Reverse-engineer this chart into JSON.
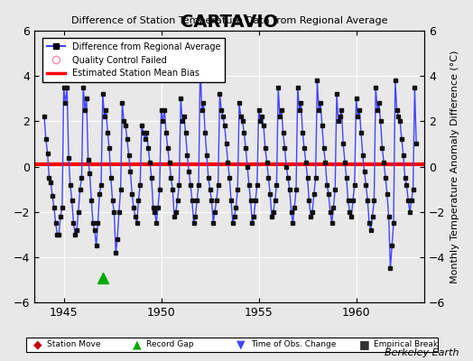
{
  "title": "CARTAVIO",
  "subtitle": "Difference of Station Temperature Data from Regional Average",
  "ylabel": "Monthly Temperature Anomaly Difference (°C)",
  "xlim": [
    1943.5,
    1963.5
  ],
  "ylim": [
    -6,
    6
  ],
  "yticks": [
    -6,
    -4,
    -2,
    0,
    2,
    4,
    6
  ],
  "xticks": [
    1945,
    1950,
    1955,
    1960
  ],
  "bias": 0.1,
  "line_color": "#4444ff",
  "line_width": 1.0,
  "marker_color": "#111111",
  "marker_size": 3.5,
  "bias_color": "#ff0000",
  "bias_linewidth": 3.0,
  "background_color": "#e8e8e8",
  "grid_color": "#ffffff",
  "record_gap_x": 1947.0,
  "record_gap_y": -4.9,
  "berkeley_earth_text": "Berkeley Earth",
  "data": [
    1944.0,
    2.2,
    1944.083,
    1.2,
    1944.167,
    0.6,
    1944.25,
    -0.5,
    1944.333,
    -0.7,
    1944.417,
    -1.3,
    1944.5,
    -1.8,
    1944.583,
    -2.5,
    1944.667,
    -3.0,
    1944.75,
    -3.0,
    1944.833,
    -2.2,
    1944.917,
    -1.8,
    1945.0,
    3.5,
    1945.083,
    2.8,
    1945.167,
    3.5,
    1945.25,
    0.4,
    1945.333,
    -0.8,
    1945.417,
    -1.5,
    1945.5,
    -2.5,
    1945.583,
    -3.0,
    1945.667,
    -2.8,
    1945.75,
    -2.0,
    1945.833,
    -1.0,
    1945.917,
    -0.5,
    1946.0,
    3.5,
    1946.083,
    2.5,
    1946.167,
    3.0,
    1946.25,
    0.3,
    1946.333,
    -0.3,
    1946.417,
    -1.5,
    1946.5,
    -2.5,
    1946.583,
    -2.8,
    1946.667,
    -3.5,
    1946.75,
    -2.5,
    1946.833,
    -1.2,
    1946.917,
    -0.8,
    1947.0,
    3.2,
    1947.083,
    2.2,
    1947.167,
    2.5,
    1947.25,
    1.5,
    1947.333,
    0.8,
    1947.417,
    -0.5,
    1947.5,
    -1.5,
    1947.583,
    -2.0,
    1947.667,
    -3.8,
    1947.75,
    -3.2,
    1947.833,
    -2.0,
    1947.917,
    -1.0,
    1948.0,
    2.8,
    1948.083,
    2.0,
    1948.167,
    1.8,
    1948.25,
    1.2,
    1948.333,
    0.5,
    1948.417,
    -0.2,
    1948.5,
    -1.2,
    1948.583,
    -1.8,
    1948.667,
    -2.2,
    1948.75,
    -2.5,
    1948.833,
    -1.5,
    1948.917,
    -0.8,
    1949.0,
    1.8,
    1949.083,
    1.5,
    1949.167,
    1.2,
    1949.25,
    1.5,
    1949.333,
    0.8,
    1949.417,
    0.2,
    1949.5,
    -0.5,
    1949.583,
    -1.8,
    1949.667,
    -2.0,
    1949.75,
    -2.5,
    1949.833,
    -1.8,
    1949.917,
    -1.0,
    1950.0,
    2.5,
    1950.083,
    2.0,
    1950.167,
    2.5,
    1950.25,
    1.5,
    1950.333,
    0.8,
    1950.417,
    0.2,
    1950.5,
    -0.5,
    1950.583,
    -1.0,
    1950.667,
    -2.2,
    1950.75,
    -2.0,
    1950.833,
    -1.5,
    1950.917,
    -0.8,
    1951.0,
    3.0,
    1951.083,
    2.0,
    1951.167,
    2.2,
    1951.25,
    1.5,
    1951.333,
    0.5,
    1951.417,
    -0.2,
    1951.5,
    -0.8,
    1951.583,
    -1.5,
    1951.667,
    -2.5,
    1951.75,
    -2.2,
    1951.833,
    -1.5,
    1951.917,
    -0.8,
    1952.0,
    4.5,
    1952.083,
    2.5,
    1952.167,
    2.8,
    1952.25,
    1.5,
    1952.333,
    0.5,
    1952.417,
    -0.5,
    1952.5,
    -1.0,
    1952.583,
    -1.5,
    1952.667,
    -2.5,
    1952.75,
    -2.0,
    1952.833,
    -1.5,
    1952.917,
    -0.8,
    1953.0,
    3.2,
    1953.083,
    2.5,
    1953.167,
    2.2,
    1953.25,
    1.8,
    1953.333,
    1.0,
    1953.417,
    0.2,
    1953.5,
    -0.5,
    1953.583,
    -1.5,
    1953.667,
    -2.5,
    1953.75,
    -2.2,
    1953.833,
    -1.8,
    1953.917,
    -1.0,
    1954.0,
    2.8,
    1954.083,
    2.2,
    1954.167,
    2.0,
    1954.25,
    1.5,
    1954.333,
    0.8,
    1954.417,
    0.0,
    1954.5,
    -0.8,
    1954.583,
    -1.5,
    1954.667,
    -2.5,
    1954.75,
    -2.2,
    1954.833,
    -1.5,
    1954.917,
    -0.8,
    1955.0,
    2.5,
    1955.083,
    2.0,
    1955.167,
    2.2,
    1955.25,
    1.8,
    1955.333,
    0.8,
    1955.417,
    0.2,
    1955.5,
    -0.5,
    1955.583,
    -1.2,
    1955.667,
    -2.2,
    1955.75,
    -2.0,
    1955.833,
    -1.5,
    1955.917,
    -0.8,
    1956.0,
    3.5,
    1956.083,
    2.2,
    1956.167,
    2.5,
    1956.25,
    1.5,
    1956.333,
    0.8,
    1956.417,
    0.0,
    1956.5,
    -0.5,
    1956.583,
    -1.0,
    1956.667,
    -2.0,
    1956.75,
    -2.5,
    1956.833,
    -1.8,
    1956.917,
    -1.0,
    1957.0,
    3.5,
    1957.083,
    2.5,
    1957.167,
    2.8,
    1957.25,
    1.5,
    1957.333,
    0.8,
    1957.417,
    0.2,
    1957.5,
    -0.5,
    1957.583,
    -1.5,
    1957.667,
    -2.2,
    1957.75,
    -2.0,
    1957.833,
    -1.2,
    1957.917,
    -0.5,
    1958.0,
    3.8,
    1958.083,
    2.5,
    1958.167,
    2.8,
    1958.25,
    1.8,
    1958.333,
    0.8,
    1958.417,
    0.2,
    1958.5,
    -0.8,
    1958.583,
    -1.2,
    1958.667,
    -2.0,
    1958.75,
    -2.5,
    1958.833,
    -1.8,
    1958.917,
    -1.0,
    1959.0,
    3.2,
    1959.083,
    2.0,
    1959.167,
    2.2,
    1959.25,
    2.5,
    1959.333,
    1.0,
    1959.417,
    0.2,
    1959.5,
    -0.5,
    1959.583,
    -1.5,
    1959.667,
    -2.0,
    1959.75,
    -2.2,
    1959.833,
    -1.5,
    1959.917,
    -0.8,
    1960.0,
    3.0,
    1960.083,
    2.2,
    1960.167,
    2.5,
    1960.25,
    1.5,
    1960.333,
    0.5,
    1960.417,
    -0.2,
    1960.5,
    -0.8,
    1960.583,
    -1.5,
    1960.667,
    -2.5,
    1960.75,
    -2.8,
    1960.833,
    -2.2,
    1960.917,
    -1.5,
    1961.0,
    3.5,
    1961.083,
    2.5,
    1961.167,
    2.8,
    1961.25,
    2.0,
    1961.333,
    0.8,
    1961.417,
    0.2,
    1961.5,
    -0.5,
    1961.583,
    -1.2,
    1961.667,
    -2.2,
    1961.75,
    -4.5,
    1961.833,
    -3.5,
    1961.917,
    -2.5,
    1962.0,
    3.8,
    1962.083,
    2.5,
    1962.167,
    2.2,
    1962.25,
    2.0,
    1962.333,
    1.2,
    1962.417,
    0.5,
    1962.5,
    -0.5,
    1962.583,
    -0.8,
    1962.667,
    -1.5,
    1962.75,
    -2.0,
    1962.833,
    -1.5,
    1962.917,
    -1.0,
    1963.0,
    3.5,
    1963.083,
    1.0
  ]
}
